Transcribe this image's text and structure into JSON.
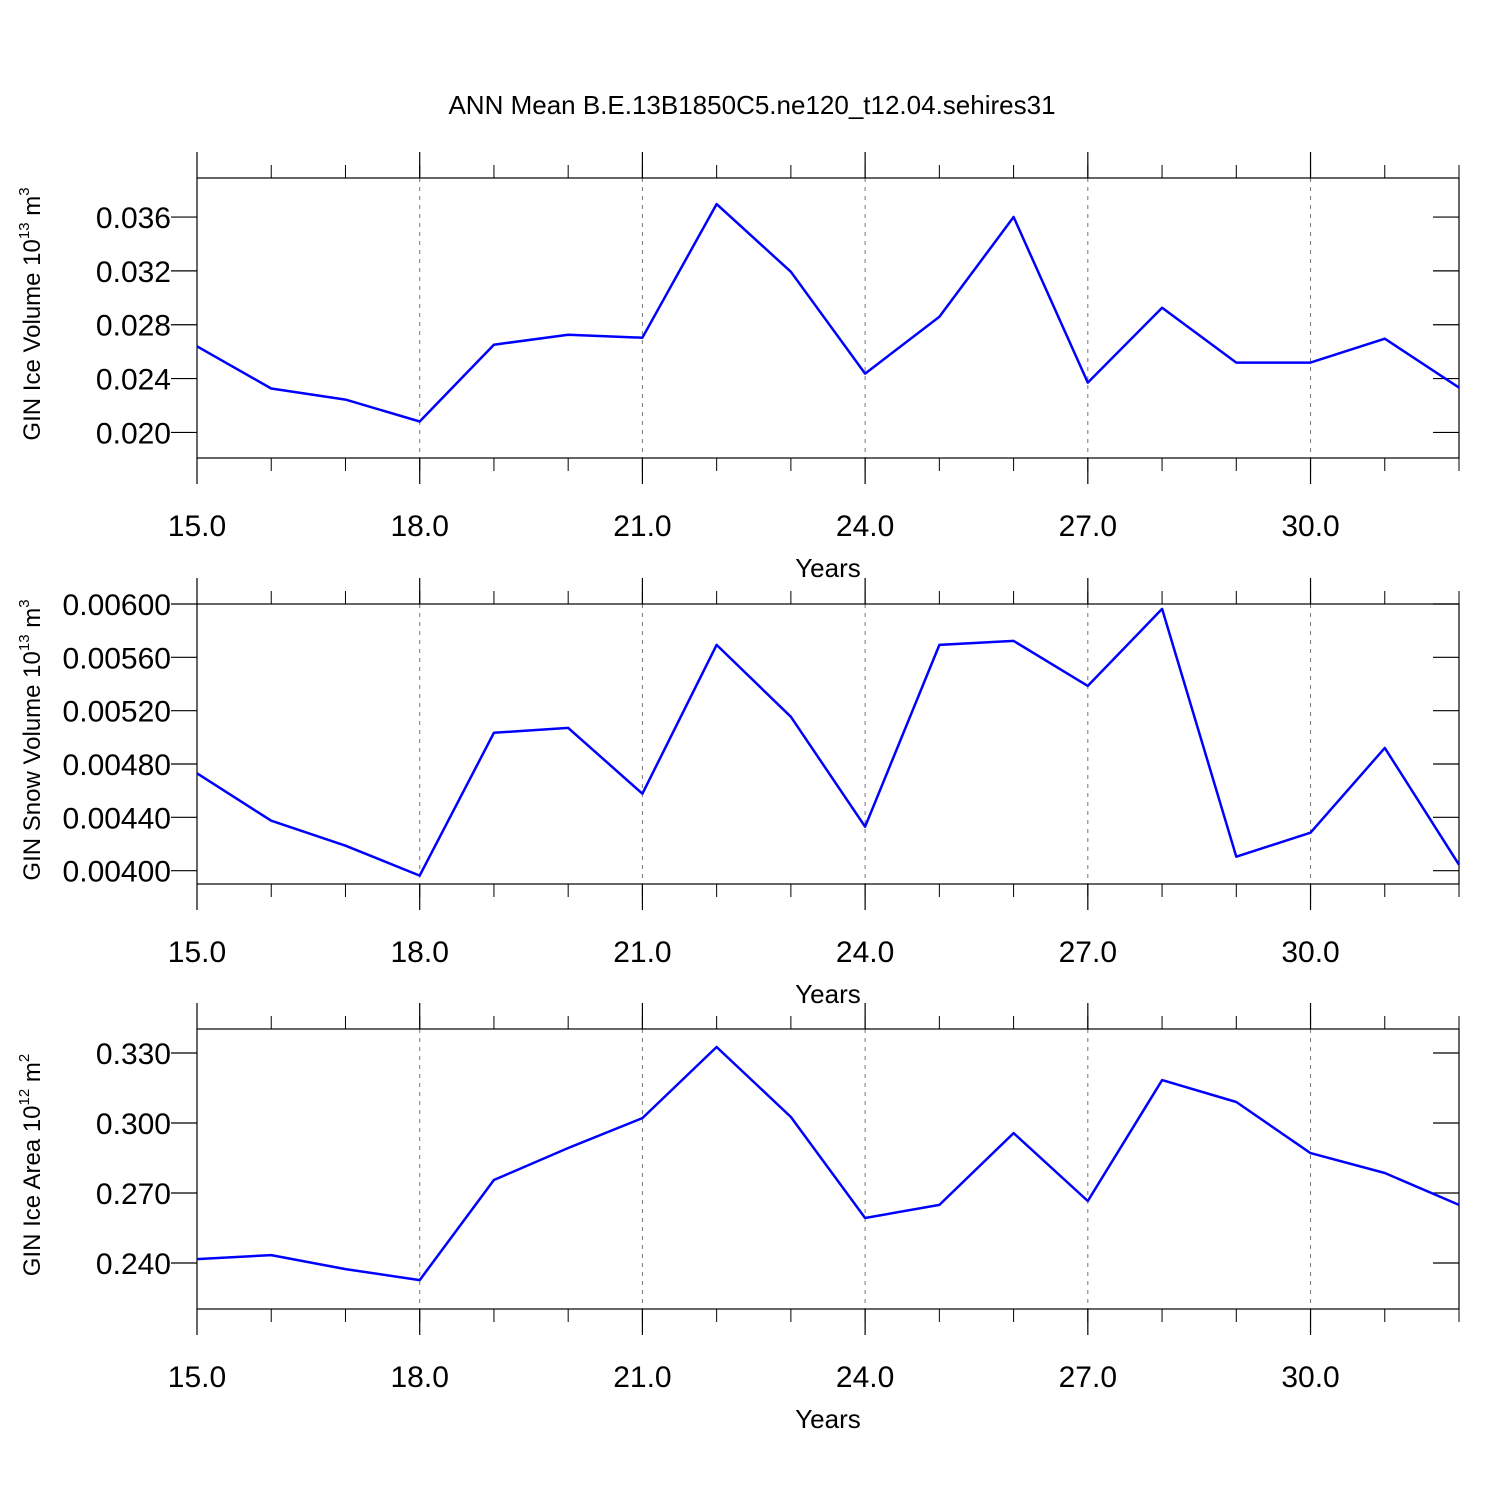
{
  "chart_data": [
    {
      "type": "line",
      "title": "ANN Mean B.E.13B1850C5.ne120_t12.04.sehires31",
      "x": [
        15,
        16,
        17,
        18,
        19,
        20,
        21,
        22,
        23,
        24,
        25,
        26,
        27,
        28,
        29,
        30,
        31,
        32
      ],
      "values": [
        0.0264,
        0.02326,
        0.02244,
        0.02081,
        0.02652,
        0.02726,
        0.02704,
        0.03696,
        0.03193,
        0.02437,
        0.02859,
        0.036,
        0.0237,
        0.02926,
        0.02519,
        0.02519,
        0.02696,
        0.02333
      ],
      "color": "#0000ff",
      "xlim": [
        15,
        32
      ],
      "xticks": [
        {
          "value": 15,
          "label": "15.0"
        },
        {
          "value": 18,
          "label": "18.0"
        },
        {
          "value": 21,
          "label": "21.0"
        },
        {
          "value": 24,
          "label": "24.0"
        },
        {
          "value": 27,
          "label": "27.0"
        },
        {
          "value": 30,
          "label": "30.0"
        }
      ],
      "xlabel": "Years",
      "ylim": [
        0.0181,
        0.0389
      ],
      "yticks": [
        {
          "value": 0.02,
          "label": "0.020"
        },
        0.024,
        0.028,
        0.032,
        0.036
      ],
      "ylabel": [
        "GIN Ice Volume 10",
        "13",
        " m",
        "3"
      ],
      "grid": true
    },
    {
      "type": "line",
      "x": [
        15,
        16,
        17,
        18,
        19,
        20,
        21,
        22,
        23,
        24,
        25,
        26,
        27,
        28,
        29,
        30,
        31,
        32
      ],
      "values": [
        0.00473,
        0.004375,
        0.004187,
        0.003963,
        0.005034,
        0.005071,
        0.004577,
        0.005693,
        0.005154,
        0.00433,
        0.005693,
        0.005723,
        0.005386,
        0.005963,
        0.004105,
        0.004285,
        0.004921,
        0.004045
      ],
      "color": "#0000ff",
      "xlim": [
        15,
        32
      ],
      "xticks": [
        {
          "value": 15,
          "label": "15.0"
        },
        {
          "value": 18,
          "label": "18.0"
        },
        {
          "value": 21,
          "label": "21.0"
        },
        {
          "value": 24,
          "label": "24.0"
        },
        {
          "value": 27,
          "label": "27.0"
        },
        {
          "value": 30,
          "label": "30.0"
        }
      ],
      "xlabel": "Years",
      "ylim": [
        0.0039,
        0.006
      ],
      "yticks": [
        {
          "value": 0.004,
          "label": "0.00400"
        },
        {
          "value": 0.0044,
          "label": "0.00440"
        },
        {
          "value": 0.0048,
          "label": "0.00480"
        },
        {
          "value": 0.0052,
          "label": "0.00520"
        },
        {
          "value": 0.0056,
          "label": "0.00560"
        },
        {
          "value": 0.006,
          "label": "0.00600"
        }
      ],
      "ylabel": [
        "GIN Snow Volume 10",
        "13",
        " m",
        "3"
      ],
      "grid": true
    },
    {
      "type": "line",
      "x": [
        15,
        16,
        17,
        18,
        19,
        20,
        21,
        22,
        23,
        24,
        25,
        26,
        27,
        28,
        29,
        30,
        31,
        32
      ],
      "values": [
        0.2417,
        0.2434,
        0.2374,
        0.2327,
        0.2756,
        0.2893,
        0.3021,
        0.3326,
        0.3026,
        0.2593,
        0.2649,
        0.2957,
        0.2666,
        0.3184,
        0.309,
        0.2871,
        0.2786,
        0.2649
      ],
      "color": "#0000ff",
      "xlim": [
        15,
        32
      ],
      "xticks": [
        {
          "value": 15,
          "label": "15.0"
        },
        {
          "value": 18,
          "label": "18.0"
        },
        {
          "value": 21,
          "label": "21.0"
        },
        {
          "value": 24,
          "label": "24.0"
        },
        {
          "value": 27,
          "label": "27.0"
        },
        {
          "value": 30,
          "label": "30.0"
        }
      ],
      "xlabel": "Years",
      "ylim": [
        0.2203,
        0.3403
      ],
      "yticks": [
        {
          "value": 0.24,
          "label": "0.240"
        },
        {
          "value": 0.27,
          "label": "0.270"
        },
        {
          "value": 0.3,
          "label": "0.300"
        },
        {
          "value": 0.33,
          "label": "0.330"
        }
      ],
      "ylabel": [
        "GIN Ice Area 10",
        "12",
        " m",
        "2"
      ],
      "grid": true
    }
  ]
}
